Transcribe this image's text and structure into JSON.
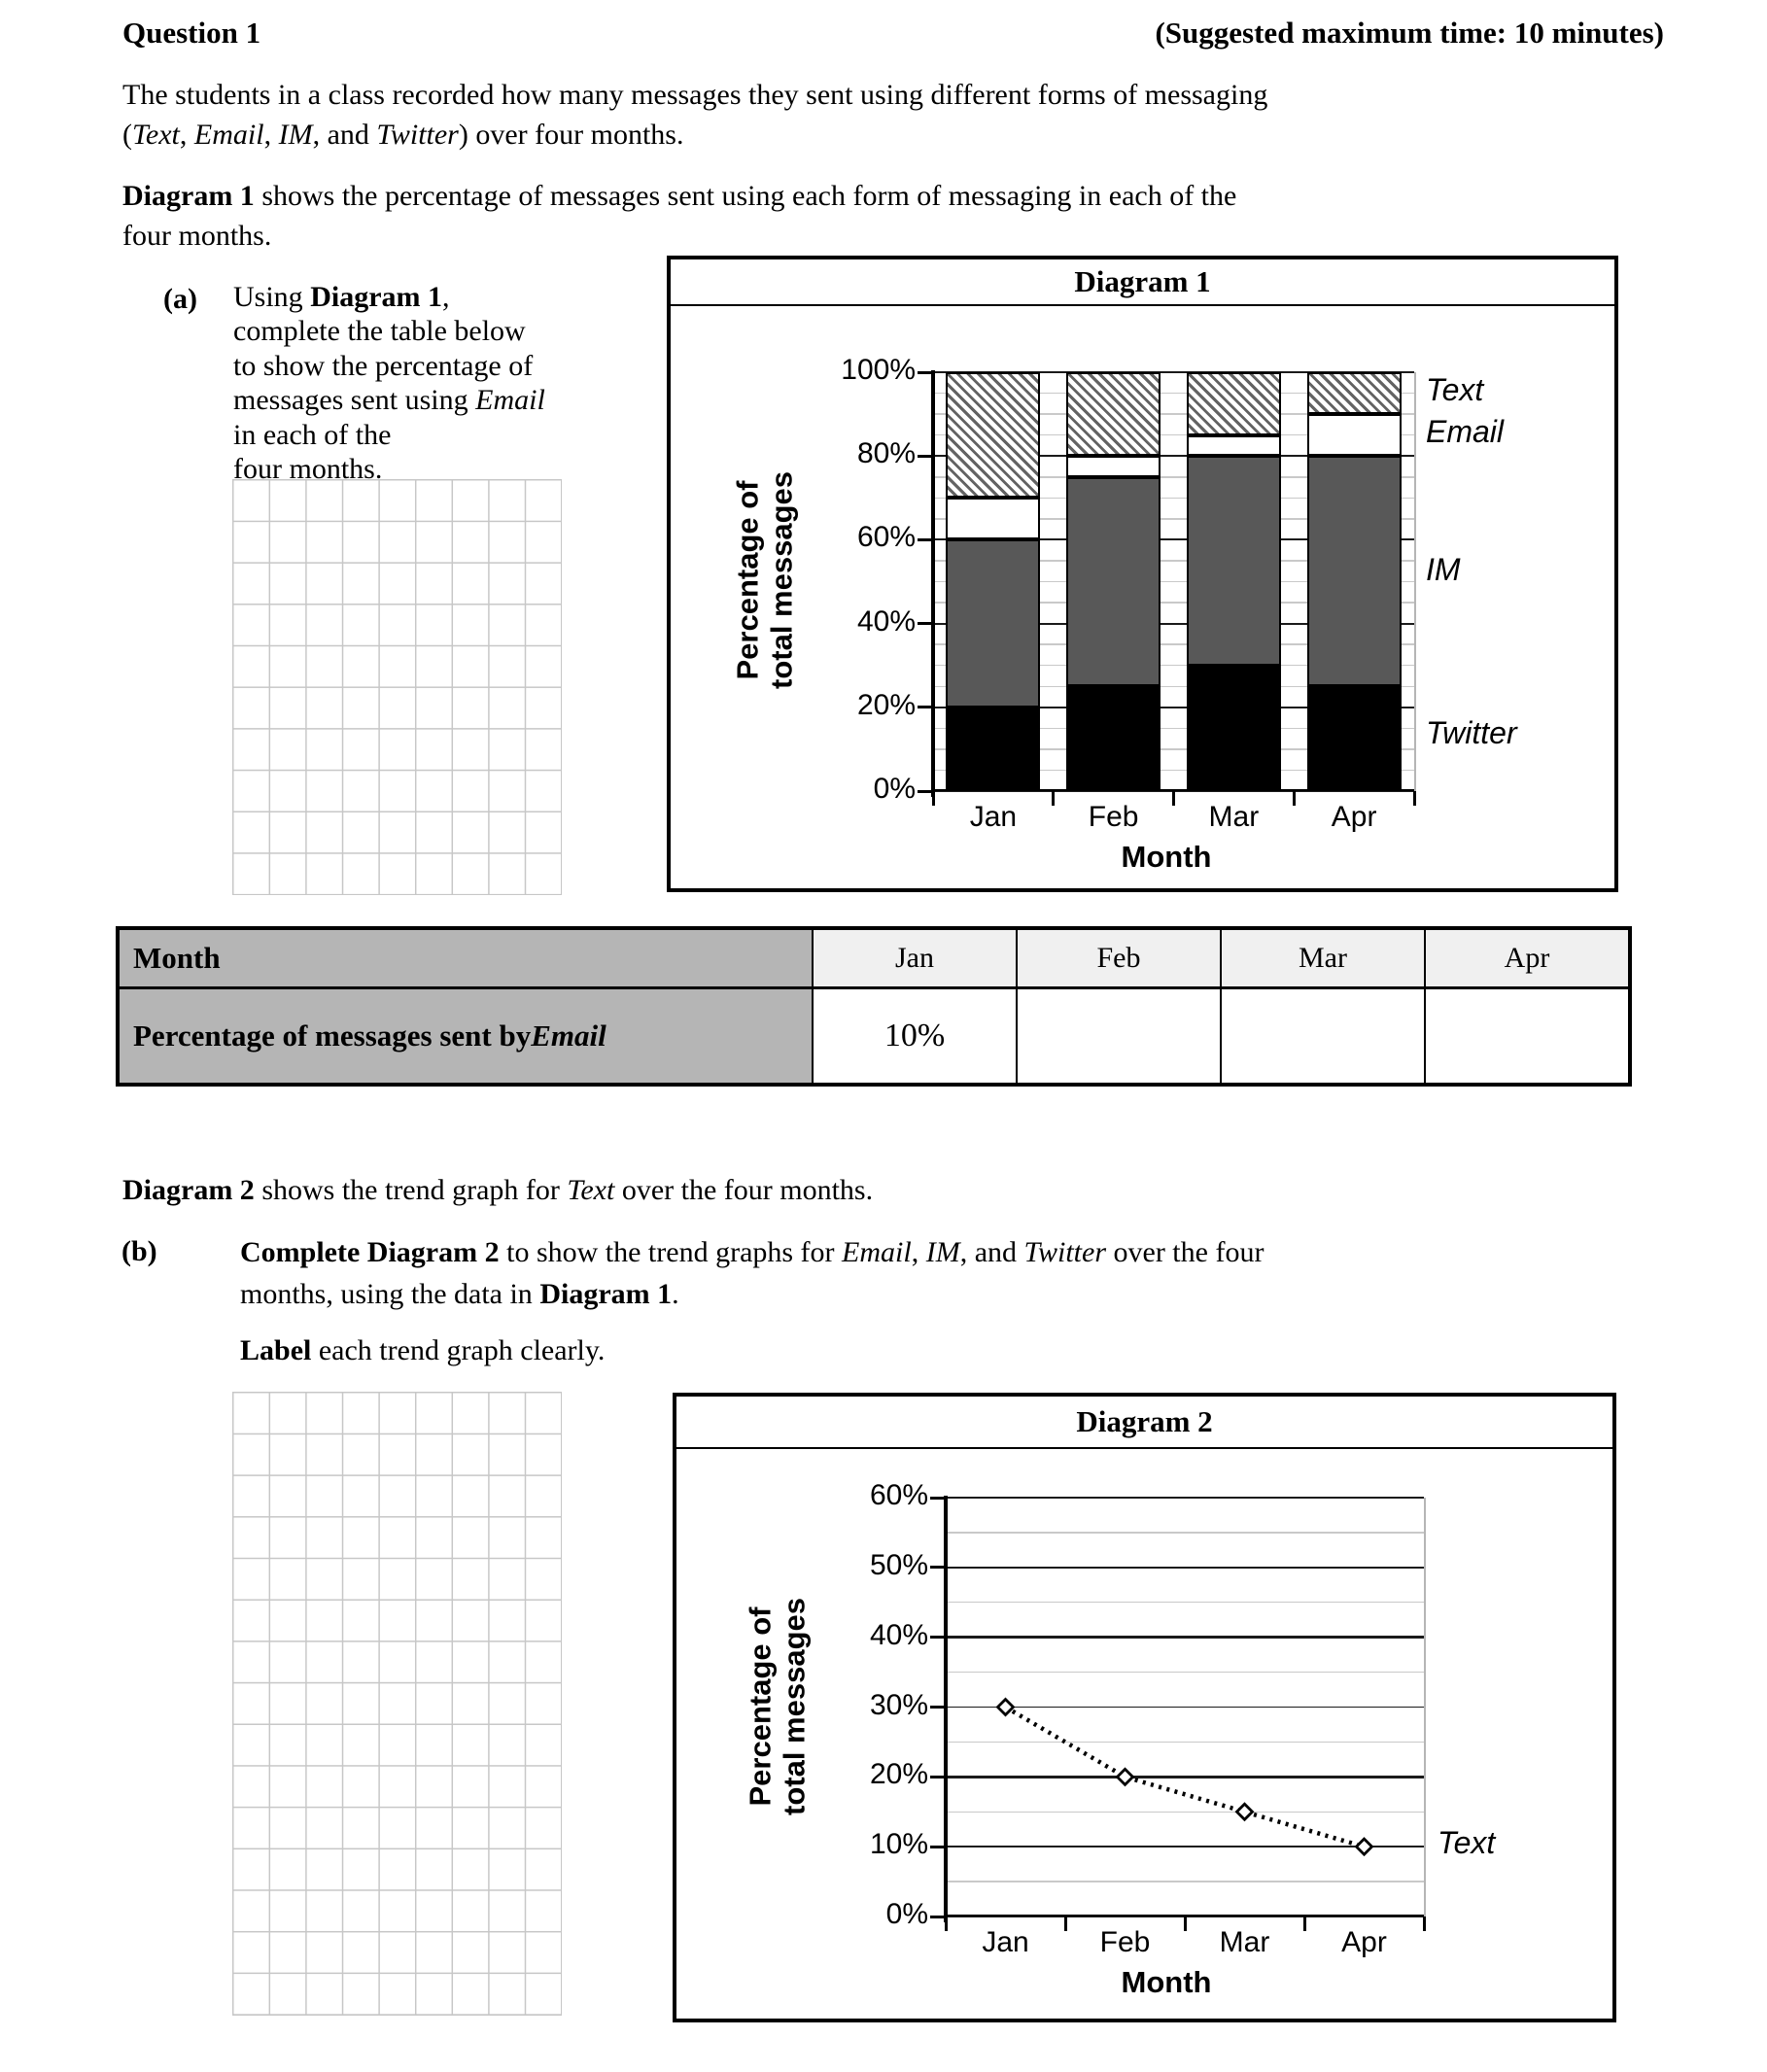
{
  "header": {
    "question_label": "Question 1",
    "time_note": "(Suggested maximum time: 10 minutes)"
  },
  "paragraphs": {
    "intro": [
      {
        "t": "The students in a class recorded how many messages they sent using different forms of messaging"
      },
      {
        "br": true
      },
      {
        "t": "("
      },
      {
        "t": "Text",
        "i": true
      },
      {
        "t": ", "
      },
      {
        "t": "Email",
        "i": true
      },
      {
        "t": ", "
      },
      {
        "t": "IM",
        "i": true
      },
      {
        "t": ", and "
      },
      {
        "t": "Twitter",
        "i": true
      },
      {
        "t": ") over four months."
      }
    ],
    "diagram1_intro": [
      {
        "t": "Diagram 1",
        "b": true
      },
      {
        "t": " shows the percentage of messages sent using each form of messaging in each of the"
      },
      {
        "br": true
      },
      {
        "t": "four months."
      }
    ],
    "diagram2_intro": [
      {
        "t": "Diagram 2",
        "b": true
      },
      {
        "t": " shows the trend graph for "
      },
      {
        "t": "Text",
        "i": true
      },
      {
        "t": " over the four months."
      }
    ]
  },
  "part_a": {
    "label": "(a)",
    "text": [
      {
        "t": "Using "
      },
      {
        "t": "Diagram 1",
        "b": true
      },
      {
        "t": ","
      },
      {
        "br": true
      },
      {
        "t": "complete the table below"
      },
      {
        "br": true
      },
      {
        "t": "to show the percentage of"
      },
      {
        "br": true
      },
      {
        "t": "messages sent using "
      },
      {
        "t": "Email",
        "i": true
      },
      {
        "br": true
      },
      {
        "t": "in each of the"
      },
      {
        "br": true
      },
      {
        "t": "four months."
      }
    ]
  },
  "part_b": {
    "label": "(b)",
    "text": [
      {
        "t": "Complete Diagram 2",
        "b": true
      },
      {
        "t": " to show the trend graphs for "
      },
      {
        "t": "Email",
        "i": true
      },
      {
        "t": ", "
      },
      {
        "t": "IM",
        "i": true
      },
      {
        "t": ", and "
      },
      {
        "t": "Twitter",
        "i": true
      },
      {
        "t": " over the four"
      },
      {
        "br": true
      },
      {
        "t": "months, using the data in "
      },
      {
        "t": "Diagram 1",
        "b": true
      },
      {
        "t": "."
      }
    ],
    "note": [
      {
        "t": "Label",
        "b": true
      },
      {
        "t": " each trend graph clearly."
      }
    ]
  },
  "table": {
    "row1_label": "Month",
    "months": [
      "Jan",
      "Feb",
      "Mar",
      "Apr"
    ],
    "row2_label_segments": [
      {
        "t": "Percentage of messages sent by ",
        "b": true
      },
      {
        "t": "Email",
        "b": true,
        "i": true
      }
    ],
    "values": [
      "10%",
      "",
      "",
      ""
    ]
  },
  "chart_data": [
    {
      "id": "diagram1",
      "type": "bar",
      "subtype": "stacked-bar",
      "title": "Diagram 1",
      "categories": [
        "Jan",
        "Feb",
        "Mar",
        "Apr"
      ],
      "series": [
        {
          "name": "Twitter",
          "values": [
            20,
            25,
            30,
            25
          ],
          "fill": "#000000",
          "pattern": "solid"
        },
        {
          "name": "IM",
          "values": [
            40,
            50,
            50,
            55
          ],
          "fill": "#585858",
          "pattern": "solid"
        },
        {
          "name": "Email",
          "values": [
            10,
            5,
            5,
            10
          ],
          "fill": "#ffffff",
          "pattern": "solid"
        },
        {
          "name": "Text",
          "values": [
            30,
            20,
            15,
            10
          ],
          "fill": "#ffffff",
          "pattern": "hatch"
        }
      ],
      "ylabel_lines": [
        "Percentage of",
        "total messages"
      ],
      "xlabel": "Month",
      "ylim": [
        0,
        100
      ],
      "ytick_step": 20,
      "minor_step": 5,
      "ytick_suffix": "%",
      "grid": "on",
      "legend_position": "right",
      "legend": [
        {
          "label": "Text",
          "at_value": 95
        },
        {
          "label": "Email",
          "at_value": 85
        },
        {
          "label": "IM",
          "at_value": 52
        },
        {
          "label": "Twitter",
          "at_value": 13
        }
      ]
    },
    {
      "id": "diagram2",
      "type": "line",
      "title": "Diagram 2",
      "categories": [
        "Jan",
        "Feb",
        "Mar",
        "Apr"
      ],
      "series": [
        {
          "name": "Text",
          "values": [
            30,
            20,
            15,
            10
          ],
          "marker": "open-diamond",
          "line_style": "dotted",
          "label_at_value": 10
        }
      ],
      "ylabel_lines": [
        "Percentage of",
        "total messages"
      ],
      "xlabel": "Month",
      "ylim": [
        0,
        60
      ],
      "ytick_step": 10,
      "minor_step": 5,
      "ytick_suffix": "%",
      "grid": "on",
      "legend_position": "right"
    }
  ]
}
